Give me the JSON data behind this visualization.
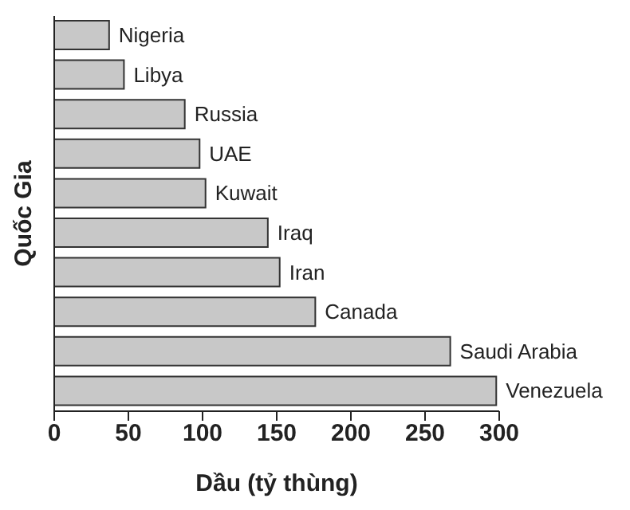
{
  "chart_data": {
    "type": "bar",
    "orientation": "horizontal",
    "xlabel": "Dầu (tỷ thùng)",
    "ylabel": "Quốc Gia",
    "categories": [
      "Nigeria",
      "Libya",
      "Russia",
      "UAE",
      "Kuwait",
      "Iraq",
      "Iran",
      "Canada",
      "Saudi Arabia",
      "Venezuela"
    ],
    "values": [
      37,
      47,
      88,
      98,
      102,
      144,
      152,
      176,
      267,
      298
    ],
    "color": "#c8c8c8",
    "xlim": [
      0,
      300
    ],
    "xticks": [
      0,
      50,
      100,
      150,
      200,
      250,
      300
    ],
    "grid": false,
    "legend": false
  }
}
